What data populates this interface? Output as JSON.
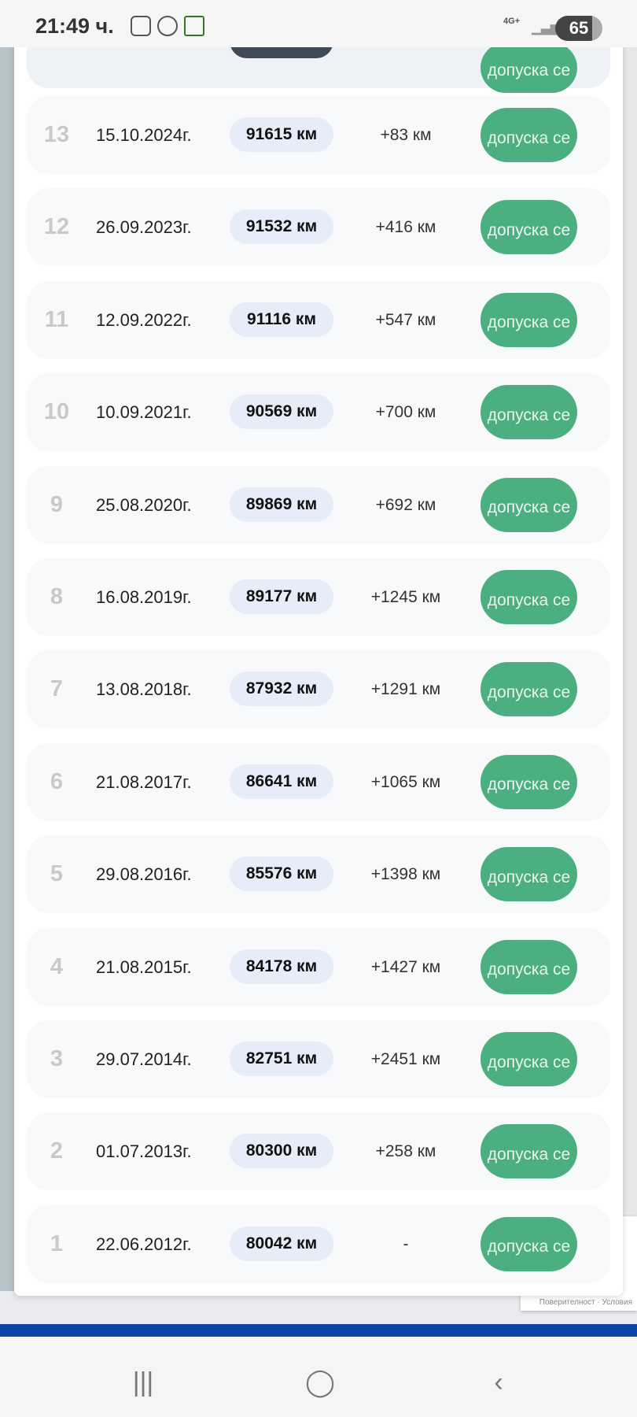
{
  "status": {
    "time": "21:49 ч.",
    "network": "4G+",
    "battery": "65"
  },
  "partial_row": {
    "button": "допуска се"
  },
  "rows": [
    {
      "n": "13",
      "date": "15.10.2024г.",
      "km": "91615 км",
      "delta": "+83 км",
      "status": "допуска се"
    },
    {
      "n": "12",
      "date": "26.09.2023г.",
      "km": "91532 км",
      "delta": "+416 км",
      "status": "допуска се"
    },
    {
      "n": "11",
      "date": "12.09.2022г.",
      "km": "91116 км",
      "delta": "+547 км",
      "status": "допуска се"
    },
    {
      "n": "10",
      "date": "10.09.2021г.",
      "km": "90569 км",
      "delta": "+700 км",
      "status": "допуска се"
    },
    {
      "n": "9",
      "date": "25.08.2020г.",
      "km": "89869 км",
      "delta": "+692 км",
      "status": "допуска се"
    },
    {
      "n": "8",
      "date": "16.08.2019г.",
      "km": "89177 км",
      "delta": "+1245 км",
      "status": "допуска се"
    },
    {
      "n": "7",
      "date": "13.08.2018г.",
      "km": "87932 км",
      "delta": "+1291 км",
      "status": "допуска се"
    },
    {
      "n": "6",
      "date": "21.08.2017г.",
      "km": "86641 км",
      "delta": "+1065 км",
      "status": "допуска се"
    },
    {
      "n": "5",
      "date": "29.08.2016г.",
      "km": "85576 км",
      "delta": "+1398 км",
      "status": "допуска се"
    },
    {
      "n": "4",
      "date": "21.08.2015г.",
      "km": "84178 км",
      "delta": "+1427 км",
      "status": "допуска се"
    },
    {
      "n": "3",
      "date": "29.07.2014г.",
      "km": "82751 км",
      "delta": "+2451 км",
      "status": "допуска се"
    },
    {
      "n": "2",
      "date": "01.07.2013г.",
      "km": "80300 км",
      "delta": "+258 км",
      "status": "допуска се"
    },
    {
      "n": "1",
      "date": "22.06.2012г.",
      "km": "80042 км",
      "delta": "-",
      "status": "допуска се"
    }
  ],
  "recaptcha": "Поверителност · Условия",
  "colors": {
    "accent": "#4caf7f",
    "pill": "#e6edf8",
    "brand_bar": "#0c44a4"
  }
}
